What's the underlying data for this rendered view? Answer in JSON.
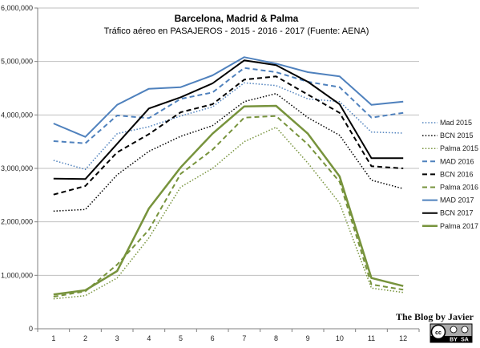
{
  "chart_data": {
    "type": "line",
    "title": "Barcelona, Madrid & Palma",
    "subtitle": "Tráfico aéreo en PASAJEROS - 2015 - 2016 - 2017 (Fuente: AENA)",
    "xlabel": "",
    "ylabel": "",
    "categories": [
      "1",
      "2",
      "3",
      "4",
      "5",
      "6",
      "7",
      "8",
      "9",
      "10",
      "11",
      "12"
    ],
    "ylim": [
      0,
      6000000
    ],
    "yticks": [
      0,
      1000000,
      2000000,
      3000000,
      4000000,
      5000000,
      6000000
    ],
    "ytick_labels": [
      "0",
      "1,000,000",
      "2,000,000",
      "3,000,000",
      "4,000,000",
      "5,000,000",
      "6,000,000"
    ],
    "grid": true,
    "legend_position": "right",
    "series": [
      {
        "name": "Mad 2015",
        "color": "#4f81bd",
        "style": "dotted",
        "width": 1.5,
        "values": [
          3150000,
          2980000,
          3650000,
          3780000,
          3980000,
          4150000,
          4600000,
          4550000,
          4300000,
          4250000,
          3680000,
          3660000
        ]
      },
      {
        "name": "BCN 2015",
        "color": "#000000",
        "style": "dotted",
        "width": 1.5,
        "values": [
          2200000,
          2230000,
          2880000,
          3320000,
          3600000,
          3800000,
          4250000,
          4400000,
          3950000,
          3620000,
          2780000,
          2620000
        ]
      },
      {
        "name": "Palma 2015",
        "color": "#77933c",
        "style": "dotted",
        "width": 1.5,
        "values": [
          560000,
          620000,
          950000,
          1700000,
          2650000,
          3000000,
          3500000,
          3770000,
          3100000,
          2350000,
          760000,
          680000
        ]
      },
      {
        "name": "MAD 2016",
        "color": "#4f81bd",
        "style": "dashed",
        "width": 2,
        "values": [
          3510000,
          3470000,
          3990000,
          3940000,
          4300000,
          4420000,
          4880000,
          4800000,
          4620000,
          4520000,
          3950000,
          4040000
        ]
      },
      {
        "name": "BCN 2016",
        "color": "#000000",
        "style": "dashed",
        "width": 2,
        "values": [
          2510000,
          2670000,
          3300000,
          3640000,
          4050000,
          4200000,
          4660000,
          4720000,
          4380000,
          4040000,
          3040000,
          3000000
        ]
      },
      {
        "name": "Palma 2016",
        "color": "#77933c",
        "style": "dashed",
        "width": 2,
        "values": [
          600000,
          700000,
          1200000,
          1850000,
          2900000,
          3350000,
          3950000,
          3980000,
          3450000,
          2750000,
          830000,
          730000
        ]
      },
      {
        "name": "MAD 2017",
        "color": "#4f81bd",
        "style": "solid",
        "width": 2,
        "values": [
          3840000,
          3590000,
          4190000,
          4490000,
          4520000,
          4740000,
          5080000,
          4960000,
          4800000,
          4720000,
          4190000,
          4250000
        ]
      },
      {
        "name": "BCN 2017",
        "color": "#000000",
        "style": "solid",
        "width": 2,
        "values": [
          2810000,
          2800000,
          3460000,
          4120000,
          4330000,
          4590000,
          5020000,
          4930000,
          4620000,
          4200000,
          3190000,
          3190000
        ]
      },
      {
        "name": "Palma 2017",
        "color": "#77933c",
        "style": "solid",
        "width": 2.5,
        "values": [
          640000,
          720000,
          1080000,
          2250000,
          3020000,
          3650000,
          4160000,
          4170000,
          3650000,
          2850000,
          950000,
          800000
        ]
      }
    ]
  },
  "watermark": {
    "text": "The Blog by Javier",
    "license_cc": "cc",
    "license_by": "BY",
    "license_sa": "SA"
  }
}
